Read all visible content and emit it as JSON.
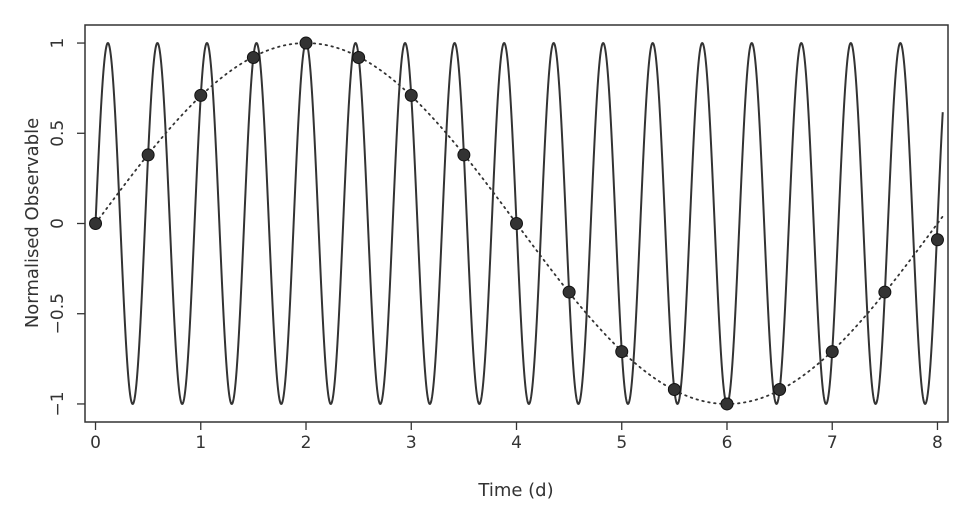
{
  "chart_data": {
    "type": "line",
    "title": "",
    "xlabel": "Time (d)",
    "ylabel": "Normalised Observable",
    "xlim": [
      -0.1,
      8.1
    ],
    "ylim": [
      -1.1,
      1.1
    ],
    "xticks": [
      0,
      1,
      2,
      3,
      4,
      5,
      6,
      7,
      8
    ],
    "yticks": [
      -1,
      -0.5,
      0,
      0.5,
      1
    ],
    "ytick_labels": [
      "−1",
      "−0.5",
      "0",
      "0.5",
      "1"
    ],
    "grid": false,
    "legend": "none",
    "series": [
      {
        "style": "solid",
        "function": "sine",
        "period": 0.4706,
        "amplitude": 1,
        "x_range": [
          0,
          8.05
        ]
      },
      {
        "style": "dotted",
        "function": "sine",
        "period": 8.0,
        "amplitude": 1,
        "x_range": [
          0,
          8.05
        ]
      },
      {
        "style": "markers",
        "x": [
          0,
          0.5,
          1.0,
          1.5,
          2.0,
          2.5,
          3.0,
          3.5,
          4.0,
          4.5,
          5.0,
          5.5,
          6.0,
          6.5,
          7.0,
          7.5,
          8.0
        ],
        "y": [
          0,
          0.38,
          0.71,
          0.92,
          1.0,
          0.92,
          0.71,
          0.38,
          0.0,
          -0.38,
          -0.71,
          -0.92,
          -1.0,
          -0.92,
          -0.71,
          -0.38,
          -0.09
        ]
      }
    ],
    "colors": {
      "line": "#333333",
      "marker": "#333333"
    }
  }
}
